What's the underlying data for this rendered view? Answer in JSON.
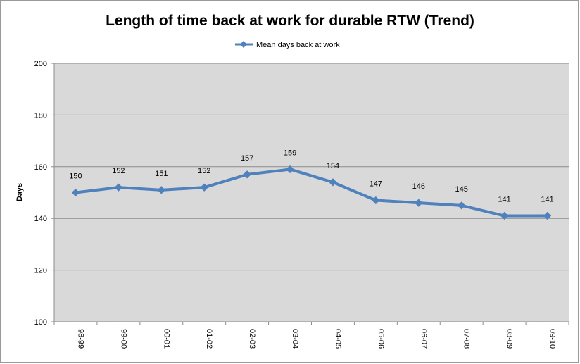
{
  "chart_data": {
    "type": "line",
    "title": "Length of time back at work for durable RTW (Trend)",
    "xlabel": "",
    "ylabel": "Days",
    "categories": [
      "98-99",
      "99-00",
      "00-01",
      "01-02",
      "02-03",
      "03-04",
      "04-05",
      "05-06",
      "06-07",
      "07-08",
      "08-09",
      "09-10"
    ],
    "series": [
      {
        "name": "Mean days back at work",
        "values": [
          150,
          152,
          151,
          152,
          157,
          159,
          154,
          147,
          146,
          145,
          141,
          141
        ],
        "color": "#4f81bd"
      }
    ],
    "ylim": [
      100,
      200
    ],
    "yticks": [
      100,
      120,
      140,
      160,
      180,
      200
    ],
    "grid": true,
    "legend_position": "top-center",
    "plot_background": "#d9d9d9",
    "gridline_color": "#8c8c8c"
  }
}
